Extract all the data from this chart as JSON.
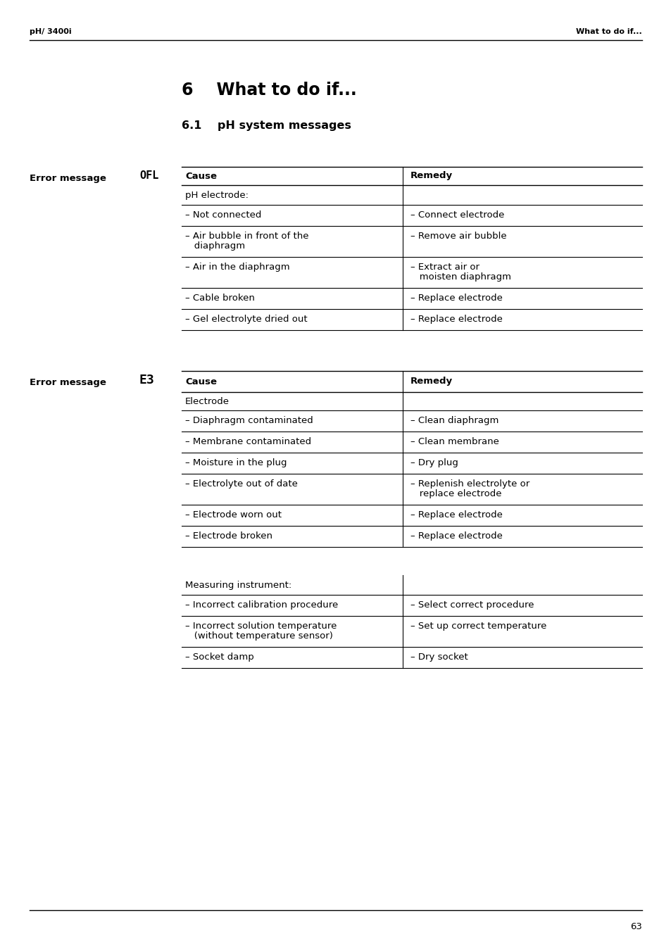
{
  "page_header_left": "pH/ 3400i",
  "page_header_right": "What to do if...",
  "chapter_title": "6    What to do if...",
  "section_title": "6.1    pH system messages",
  "page_number": "63",
  "table1": {
    "error_label": "Error message ",
    "error_symbol": "OFL",
    "col1_header": "Cause",
    "col2_header": "Remedy",
    "section_header": "pH electrode:",
    "rows": [
      [
        "–  Not connected",
        "–  Connect electrode"
      ],
      [
        "–  Air bubble in front of the\n    diaphragm",
        "–  Remove air bubble"
      ],
      [
        "–  Air in the diaphragm",
        "–  Extract air or\n   moisten diaphragm"
      ],
      [
        "–  Cable broken",
        "–  Replace electrode"
      ],
      [
        "–  Gel electrolyte dried out",
        "–  Replace electrode"
      ]
    ]
  },
  "table2": {
    "error_label": "Error message ",
    "error_symbol": "E3",
    "col1_header": "Cause",
    "col2_header": "Remedy",
    "section_header1": "Electrode",
    "rows1": [
      [
        "–  Diaphragm contaminated",
        "–  Clean diaphragm"
      ],
      [
        "–  Membrane contaminated",
        "–  Clean membrane"
      ],
      [
        "–  Moisture in the plug",
        "–  Dry plug"
      ],
      [
        "–  Electrolyte out of date",
        "–  Replenish electrolyte or\n   replace electrode"
      ],
      [
        "–  Electrode worn out",
        "–  Replace electrode"
      ],
      [
        "–  Electrode broken",
        "–  Replace electrode"
      ]
    ],
    "section_header2": "Measuring instrument:",
    "rows2": [
      [
        "–  Incorrect calibration procedure",
        "–  Select correct procedure"
      ],
      [
        "–  Incorrect solution temperature\n   (without temperature sensor)",
        "–  Set up correct temperature"
      ],
      [
        "–  Socket damp",
        "–  Dry socket"
      ]
    ]
  },
  "bg_color": "#ffffff",
  "text_color": "#000000"
}
